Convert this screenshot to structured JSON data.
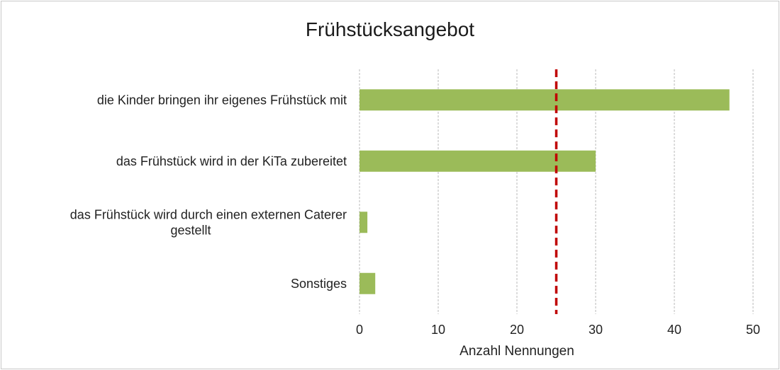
{
  "chart_data": {
    "type": "bar",
    "orientation": "horizontal",
    "title": "Frühstücksangebot",
    "xlabel": "Anzahl Nennungen",
    "ylabel": "",
    "categories": [
      [
        "die Kinder bringen ihr eigenes Frühstück mit"
      ],
      [
        "das Frühstück wird in der KiTa zubereitet"
      ],
      [
        "das Frühstück wird durch einen externen Caterer",
        "gestellt"
      ],
      [
        "Sonstiges"
      ]
    ],
    "values": [
      47,
      30,
      1,
      2
    ],
    "xlim": [
      0,
      50
    ],
    "xticks": [
      "0",
      "10",
      "20",
      "30",
      "40",
      "50"
    ],
    "grid": "vertical dashed",
    "legend": "none",
    "reference_line": {
      "value": 25,
      "style": "dashed"
    },
    "colors": {
      "bar": "#9bbb59",
      "reference_line": "#c00000",
      "grid": "#c9c9c9"
    }
  }
}
